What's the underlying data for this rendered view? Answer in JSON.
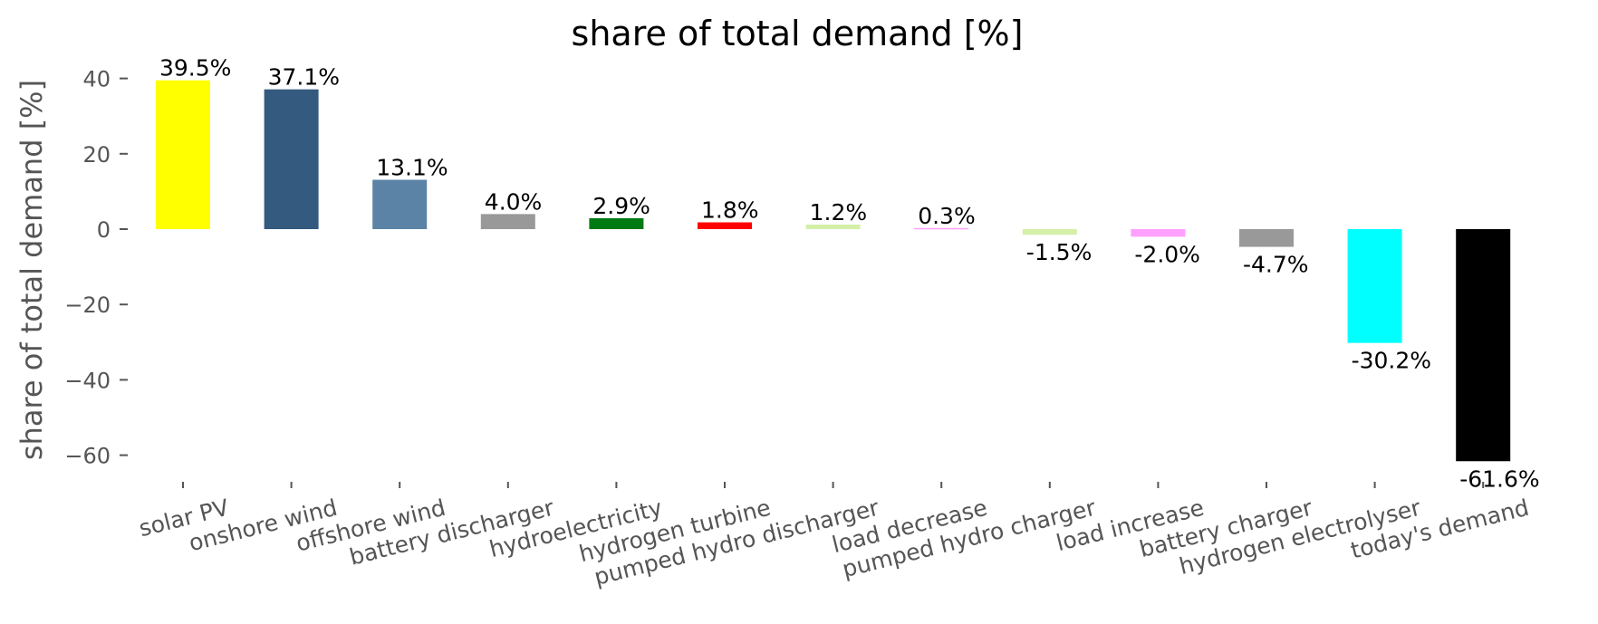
{
  "chart_data": {
    "type": "bar",
    "title": "share of total demand [%]",
    "xlabel": "",
    "ylabel": "share of total demand [%]",
    "ylim": [
      -68,
      45
    ],
    "yticks": [
      40,
      20,
      0,
      -20,
      -40,
      -60
    ],
    "ytick_labels": [
      "40",
      "20",
      "0",
      "−20",
      "−40",
      "−60"
    ],
    "grid": false,
    "categories": [
      "solar PV",
      "onshore wind",
      "offshore wind",
      "battery discharger",
      "hydroelectricity",
      "hydrogen turbine",
      "pumped hydro discharger",
      "load decrease",
      "pumped hydro charger",
      "load increase",
      "battery charger",
      "hydrogen electrolyser",
      "today's demand"
    ],
    "values": [
      39.5,
      37.1,
      13.1,
      4.0,
      2.9,
      1.8,
      1.2,
      0.3,
      -1.5,
      -2.0,
      -4.7,
      -30.2,
      -61.6
    ],
    "value_labels": [
      "39.5%",
      "37.1%",
      "13.1%",
      "4.0%",
      "2.9%",
      "1.8%",
      "1.2%",
      "0.3%",
      "-1.5%",
      "-2.0%",
      "-4.7%",
      "-30.2%",
      "-61.6%"
    ],
    "colors": [
      "#ffff00",
      "#355a80",
      "#5b83a6",
      "#999999",
      "#027a14",
      "#ff0000",
      "#d4f0a8",
      "#ffa0ff",
      "#d4f0a8",
      "#ffa0ff",
      "#999999",
      "#00ffff",
      "#000000"
    ]
  }
}
